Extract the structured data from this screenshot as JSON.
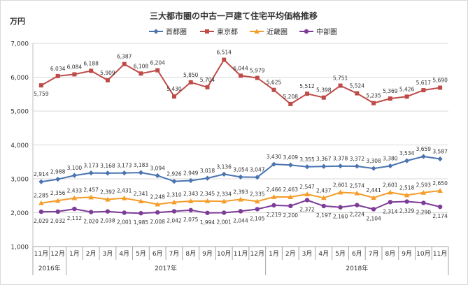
{
  "chart_data": {
    "type": "line",
    "title": "三大都市圏の中古一戸建て住宅平均価格推移",
    "ylabel": "万円",
    "ylim": [
      1000,
      7000
    ],
    "yticks": [
      1000,
      2000,
      3000,
      4000,
      5000,
      6000,
      7000
    ],
    "ytick_labels": [
      "1,000",
      "2,000",
      "3,000",
      "4,000",
      "5,000",
      "6,000",
      "7,000"
    ],
    "categories": [
      "11月",
      "12月",
      "1月",
      "2月",
      "3月",
      "4月",
      "5月",
      "6月",
      "7月",
      "8月",
      "9月",
      "10月",
      "11月",
      "12月",
      "1月",
      "2月",
      "3月",
      "4月",
      "5月",
      "6月",
      "7月",
      "8月",
      "9月",
      "10月",
      "11月"
    ],
    "year_groups": [
      {
        "label": "2016年",
        "start": 0,
        "end": 1
      },
      {
        "label": "2017年",
        "start": 2,
        "end": 13
      },
      {
        "label": "2018年",
        "start": 14,
        "end": 24
      }
    ],
    "legend_position": "top",
    "series": [
      {
        "name": "首都圏",
        "color": "#4A74B0",
        "marker": "diamond",
        "values": [
          2914,
          2988,
          3100,
          3173,
          3168,
          3173,
          3183,
          3094,
          2926,
          2949,
          3018,
          3136,
          3054,
          3047,
          3430,
          3409,
          3355,
          3367,
          3378,
          3372,
          3308,
          3380,
          3534,
          3659,
          3587
        ],
        "labels": [
          "2,914",
          "2,988",
          "3,100",
          "3,173",
          "3,168",
          "3,173",
          "3,183",
          "3,094",
          "2,926",
          "2,949",
          "3,018",
          "3,136",
          "3,054",
          "3,047",
          "3,430",
          "3,409",
          "3,355",
          "3,367",
          "3,378",
          "3,372",
          "3,308",
          "3,380",
          "3,534",
          "3,659",
          "3,587"
        ]
      },
      {
        "name": "東京都",
        "color": "#BE4B48",
        "marker": "square",
        "values": [
          5759,
          6034,
          6084,
          6188,
          5909,
          6387,
          6108,
          6204,
          5430,
          5850,
          5704,
          6514,
          6044,
          5979,
          5625,
          5208,
          5512,
          5398,
          5751,
          5524,
          5235,
          5369,
          5426,
          5617,
          5690
        ],
        "labels": [
          "5,759",
          "6,034",
          "6,084",
          "6,188",
          "5,909",
          "6,387",
          "6,108",
          "6,204",
          "5,430",
          "5,850",
          "5,704",
          "6,514",
          "6,044",
          "5,979",
          "5,625",
          "5,208",
          "5,512",
          "5,398",
          "5,751",
          "5,524",
          "5,235",
          "5,369",
          "5,426",
          "5,617",
          "5,690"
        ]
      },
      {
        "name": "近畿圏",
        "color": "#F59D2A",
        "marker": "triangle",
        "values": [
          2285,
          2356,
          2433,
          2457,
          2392,
          2431,
          2341,
          2248,
          2310,
          2343,
          2345,
          2334,
          2393,
          2335,
          2466,
          2463,
          2547,
          2437,
          2601,
          2574,
          2441,
          2601,
          2518,
          2593,
          2650
        ],
        "labels": [
          "2,285",
          "2,356",
          "2,433",
          "2,457",
          "2,392",
          "2,431",
          "2,341",
          "2,248",
          "2,310",
          "2,343",
          "2,345",
          "2,334",
          "2,393",
          "2,335",
          "2,466",
          "2,463",
          "2,547",
          "2,437",
          "2,601",
          "2,574",
          "2,441",
          "2,601",
          "2,518",
          "2,593",
          "2,650"
        ]
      },
      {
        "name": "中部圏",
        "color": "#7D3C98",
        "marker": "circle",
        "values": [
          2029,
          2032,
          2112,
          2020,
          2038,
          2001,
          1985,
          2008,
          2042,
          2075,
          1994,
          2001,
          2044,
          2105,
          2219,
          2200,
          2372,
          2197,
          2160,
          2224,
          2104,
          2314,
          2329,
          2290,
          2174
        ],
        "labels": [
          "2,029",
          "2,032",
          "2,112",
          "2,020",
          "2,038",
          "2,001",
          "1,985",
          "2,008",
          "2,042",
          "2,075",
          "1,994",
          "2,001",
          "2,044",
          "2,105",
          "2,219",
          "2,200",
          "2,372",
          "2,197",
          "2,160",
          "2,224",
          "2,104",
          "2,314",
          "2,329",
          "2,290",
          "2,174"
        ]
      }
    ]
  }
}
